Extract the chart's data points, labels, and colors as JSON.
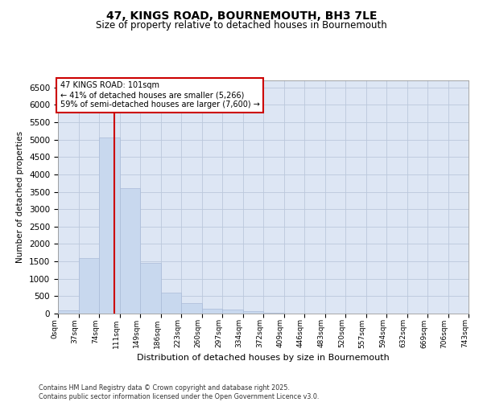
{
  "title_line1": "47, KINGS ROAD, BOURNEMOUTH, BH3 7LE",
  "title_line2": "Size of property relative to detached houses in Bournemouth",
  "xlabel": "Distribution of detached houses by size in Bournemouth",
  "ylabel": "Number of detached properties",
  "bar_color": "#c8d8ee",
  "bar_edge_color": "#aabbd8",
  "grid_color": "#bbc8dc",
  "bg_color": "#dde6f4",
  "annotation_box_color": "#cc0000",
  "property_line_color": "#cc0000",
  "annotation_text_line1": "47 KINGS ROAD: 101sqm",
  "annotation_text_line2": "← 41% of detached houses are smaller (5,266)",
  "annotation_text_line3": "59% of semi-detached houses are larger (7,600) →",
  "footer_line1": "Contains HM Land Registry data © Crown copyright and database right 2025.",
  "footer_line2": "Contains public sector information licensed under the Open Government Licence v3.0.",
  "bin_labels": [
    "0sqm",
    "37sqm",
    "74sqm",
    "111sqm",
    "149sqm",
    "186sqm",
    "223sqm",
    "260sqm",
    "297sqm",
    "334sqm",
    "372sqm",
    "409sqm",
    "446sqm",
    "483sqm",
    "520sqm",
    "557sqm",
    "594sqm",
    "632sqm",
    "669sqm",
    "706sqm",
    "743sqm"
  ],
  "bar_heights": [
    100,
    1600,
    5050,
    3600,
    1450,
    600,
    300,
    150,
    110,
    70,
    30,
    10,
    5,
    0,
    0,
    0,
    0,
    0,
    0,
    0
  ],
  "ylim": [
    0,
    6700
  ],
  "yticks": [
    0,
    500,
    1000,
    1500,
    2000,
    2500,
    3000,
    3500,
    4000,
    4500,
    5000,
    5500,
    6000,
    6500
  ],
  "property_line_x": 2.73
}
